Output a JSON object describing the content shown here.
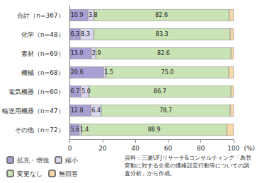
{
  "chart_data": {
    "type": "bar",
    "orientation": "horizontal",
    "stacked": true,
    "categories": [
      "合計（n=367）",
      "化学（n=48）",
      "素材（n=69）",
      "機械（n=68）",
      "電気機器（n=60）",
      "輸送用機器（n=47）",
      "その他（n=72）"
    ],
    "series": [
      {
        "name": "拡充・増強",
        "color": "#a99fd2",
        "data_labels": true,
        "values": [
          10.9,
          6.3,
          13.0,
          20.6,
          6.7,
          12.8,
          5.6
        ],
        "value_labels": [
          "10.9",
          "6.3",
          "13.0",
          "20.6",
          "6.7",
          "12.8",
          "5.6"
        ]
      },
      {
        "name": "縮小",
        "color": "#d9d5ec",
        "data_labels": true,
        "values": [
          3.8,
          8.3,
          2.9,
          1.5,
          5.0,
          6.4,
          1.4
        ],
        "value_labels": [
          "3.8",
          "8.3",
          "2.9",
          "1.5",
          "5.0",
          "6.4",
          "1.4"
        ]
      },
      {
        "name": "変更なし",
        "color": "#c9e3b5",
        "data_labels": true,
        "values": [
          82.6,
          83.3,
          82.6,
          75.0,
          86.7,
          78.7,
          88.9
        ],
        "value_labels": [
          "82.6",
          "83.3",
          "82.6",
          "75.0",
          "86.7",
          "78.7",
          "88.9"
        ]
      },
      {
        "name": "無回答",
        "color": "#f9d8a8",
        "data_labels": false,
        "values": [
          2.7,
          2.1,
          1.5,
          2.9,
          1.6,
          2.1,
          4.1
        ]
      }
    ],
    "xlim": [
      0,
      100
    ],
    "xticks": [
      0,
      20,
      40,
      60,
      80,
      100
    ],
    "x_label": "(%)",
    "grid": false,
    "legend": "bottom-left",
    "annotations": [
      "資料：三菱UFJリサーチ&コンサルティング「為替変動に対する企業の価格設定行動等についての調査分析」から作成。"
    ]
  }
}
